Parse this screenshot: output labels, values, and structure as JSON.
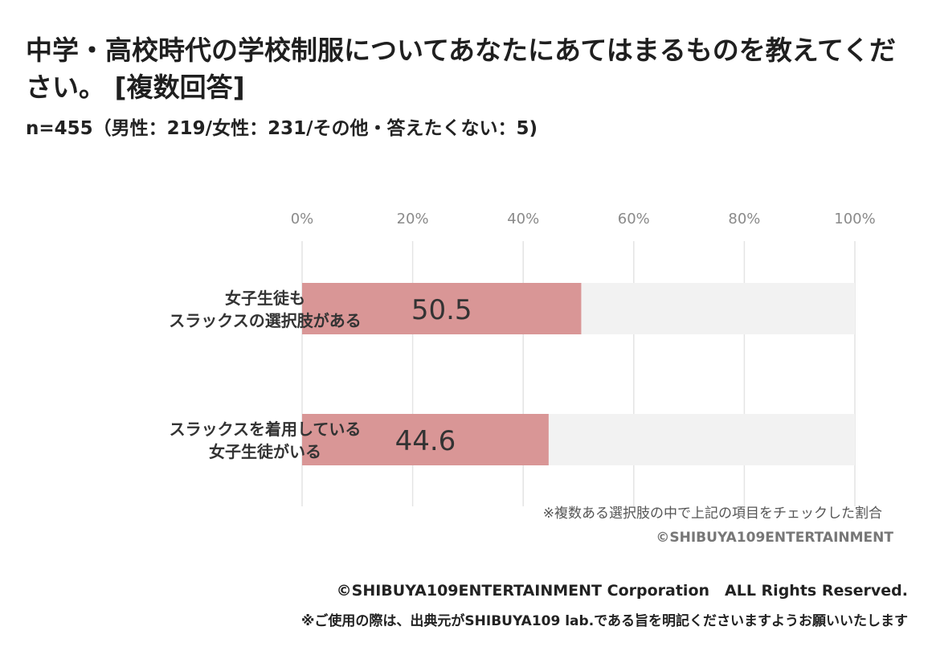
{
  "title": "中学・高校時代の学校制服についてあなたにあてはまるものを教えてください。 [複数回答]",
  "subtitle": "n=455（男性：219/女性：231/その他・答えたくない：5)",
  "note": "※複数ある選択肢の中で上記の項目をチェックした割合",
  "watermark": "©SHIBUYA109ENTERTAINMENT",
  "footer": {
    "copyright": "©SHIBUYA109ENTERTAINMENT Corporation　ALL Rights Reserved.",
    "usage": "※ご使用の際は、出典元がSHIBUYA109 lab.である旨を明記くださいますようお願いいたします"
  },
  "colors": {
    "bar": "#d99696",
    "track": "#f2f2f2",
    "grid": "#e4e4e4",
    "tick": "#8a8a8a",
    "label": "#333333",
    "value": "#333333"
  },
  "chart_data": {
    "type": "bar",
    "orientation": "horizontal",
    "categories": [
      [
        "女子生徒も",
        "スラックスの選択肢がある"
      ],
      [
        "スラックスを着用している",
        "女子生徒がいる"
      ]
    ],
    "values": [
      50.5,
      44.6
    ],
    "value_labels": [
      "50.5",
      "44.6"
    ],
    "xlim": [
      0,
      100
    ],
    "ticks": [
      0,
      20,
      40,
      60,
      80,
      100
    ],
    "tick_labels": [
      "0%",
      "20%",
      "40%",
      "60%",
      "80%",
      "100%"
    ],
    "grid": true,
    "legend": "none"
  }
}
